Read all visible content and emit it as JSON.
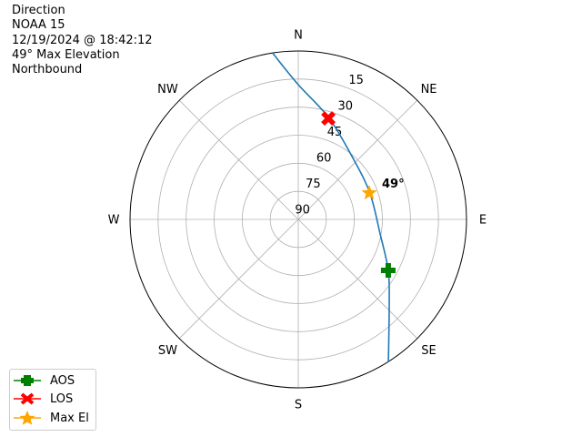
{
  "title_lines": [
    "Direction",
    "NOAA 15",
    "12/19/2024 @ 18:42:12",
    "49° Max Elevation",
    "Northbound"
  ],
  "chart_data": {
    "type": "polar-line",
    "theta_direction": "clockwise",
    "theta_zero": "N",
    "direction_labels": [
      "N",
      "NE",
      "E",
      "SE",
      "S",
      "SW",
      "W",
      "NW"
    ],
    "r_tick_labels": [
      "15",
      "30",
      "45",
      "60",
      "75",
      "90"
    ],
    "r_range_elevation": [
      0,
      90
    ],
    "grid": true,
    "track": {
      "azimuth_deg": [
        351.2,
        0,
        17.0,
        44.1,
        70.5,
        100.1,
        119.5,
        132.6,
        147.6
      ],
      "elevation_deg": [
        0,
        18,
        33.5,
        46.7,
        49.2,
        45.5,
        34.7,
        23.9,
        0
      ],
      "color": "#1f77b4"
    },
    "markers": [
      {
        "name": "AOS",
        "azimuth_deg": 119.5,
        "elevation_deg": 34.7,
        "color": "#008000",
        "symbol": "plus"
      },
      {
        "name": "LOS",
        "azimuth_deg": 16.6,
        "elevation_deg": 33.7,
        "color": "#ff0000",
        "symbol": "x"
      },
      {
        "name": "Max El",
        "azimuth_deg": 69.6,
        "elevation_deg": 49.5,
        "color": "#ffa500",
        "symbol": "star"
      }
    ],
    "annotation": "49°",
    "legend": "bottom-left"
  }
}
